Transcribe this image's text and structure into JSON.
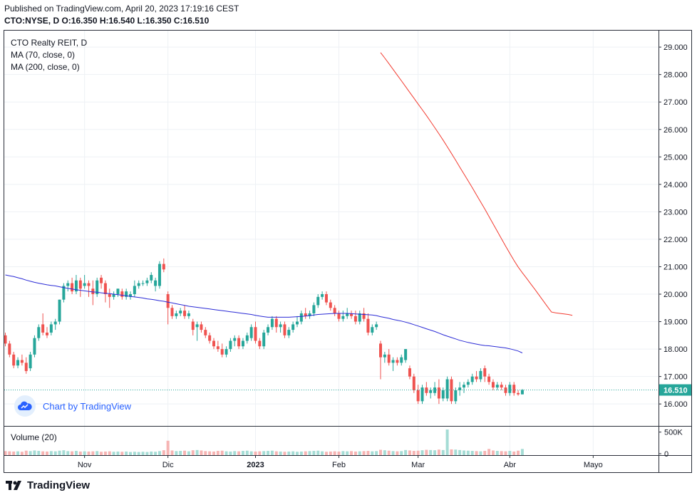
{
  "header": {
    "published": "Published on TradingView.com, April 20, 2023 17:19:16 CEST",
    "ohlc": "CTO:NYSE, D O:16.350 H:16.540 L:16.350 C:16.510"
  },
  "legend": {
    "title": "CTO Realty REIT, D",
    "ma70": "MA (70, close, 0)",
    "ma200": "MA (200, close, 0)"
  },
  "volume_legend": "Volume (20)",
  "watermark": "Chart by TradingView",
  "footer_logo": "TradingView",
  "colors": {
    "up": "#26a69a",
    "down": "#ef5350",
    "up_vol": "#a5dcd5",
    "down_vol": "#f6b4b3",
    "ma70": "#2b2bd6",
    "ma200": "#f23b30",
    "price_label": "#26a69a"
  },
  "chart_data": {
    "type": "candlestick",
    "symbol": "CTO:NYSE",
    "interval": "D",
    "last_price": 16.51,
    "last_price_label": "16.510",
    "y_ticks": [
      "29.000",
      "28.000",
      "27.000",
      "26.000",
      "25.000",
      "24.000",
      "23.000",
      "22.000",
      "21.000",
      "20.000",
      "19.000",
      "18.000",
      "17.000",
      "16.000"
    ],
    "ylim": [
      15.2,
      29.6
    ],
    "x_ticks": [
      {
        "label": "Nov",
        "bar": 19
      },
      {
        "label": "Dic",
        "bar": 39
      },
      {
        "label": "2023",
        "bar": 60
      },
      {
        "label": "Feb",
        "bar": 80
      },
      {
        "label": "Mar",
        "bar": 99
      },
      {
        "label": "Abr",
        "bar": 121
      },
      {
        "label": "Mayo",
        "bar": 141
      }
    ],
    "volume_ticks": [
      "500K",
      "0"
    ],
    "volume_max": 560000,
    "ohlc": [
      [
        18.5,
        18.6,
        18.1,
        18.2
      ],
      [
        18.2,
        18.3,
        17.7,
        17.8
      ],
      [
        17.8,
        17.9,
        17.3,
        17.4
      ],
      [
        17.4,
        17.7,
        17.3,
        17.6
      ],
      [
        17.6,
        17.8,
        17.4,
        17.5
      ],
      [
        17.5,
        17.7,
        17.1,
        17.2
      ],
      [
        17.3,
        17.9,
        17.2,
        17.8
      ],
      [
        17.8,
        18.5,
        17.7,
        18.4
      ],
      [
        18.4,
        18.9,
        18.3,
        18.8
      ],
      [
        18.9,
        19.3,
        18.5,
        18.6
      ],
      [
        18.6,
        18.8,
        18.4,
        18.5
      ],
      [
        18.6,
        19.0,
        18.5,
        18.9
      ],
      [
        18.9,
        19.1,
        18.7,
        19.0
      ],
      [
        19.0,
        19.8,
        18.9,
        19.8
      ],
      [
        19.8,
        20.4,
        19.7,
        20.3
      ],
      [
        20.3,
        20.5,
        20.1,
        20.4
      ],
      [
        20.4,
        20.6,
        20.0,
        20.1
      ],
      [
        20.1,
        20.7,
        20.0,
        20.5
      ],
      [
        20.5,
        20.6,
        19.9,
        20.2
      ],
      [
        20.3,
        20.7,
        20.2,
        20.4
      ],
      [
        20.4,
        20.5,
        19.9,
        20.3
      ],
      [
        20.2,
        20.5,
        19.6,
        20.0
      ],
      [
        20.0,
        20.6,
        19.9,
        20.5
      ],
      [
        20.6,
        20.7,
        20.2,
        20.4
      ],
      [
        20.4,
        20.5,
        19.7,
        20.0
      ],
      [
        20.0,
        20.2,
        19.5,
        19.9
      ],
      [
        19.9,
        20.1,
        19.8,
        20.0
      ],
      [
        20.0,
        20.2,
        19.9,
        20.2
      ],
      [
        20.1,
        20.2,
        19.8,
        19.9
      ],
      [
        19.9,
        20.2,
        19.8,
        20.1
      ],
      [
        19.9,
        20.1,
        19.8,
        20.0
      ],
      [
        20.0,
        20.5,
        19.9,
        20.3
      ],
      [
        20.3,
        20.5,
        20.2,
        20.4
      ],
      [
        20.4,
        20.5,
        20.3,
        20.4
      ],
      [
        20.4,
        20.6,
        20.3,
        20.5
      ],
      [
        20.5,
        20.8,
        20.4,
        20.7
      ],
      [
        20.3,
        20.6,
        20.1,
        20.5
      ],
      [
        20.3,
        21.2,
        20.2,
        21.1
      ],
      [
        21.1,
        21.3,
        20.8,
        20.9
      ],
      [
        20.0,
        20.1,
        18.9,
        19.5
      ],
      [
        19.5,
        19.6,
        19.1,
        19.2
      ],
      [
        19.2,
        19.4,
        19.1,
        19.3
      ],
      [
        19.3,
        19.5,
        19.2,
        19.4
      ],
      [
        19.4,
        19.6,
        19.1,
        19.2
      ],
      [
        19.2,
        19.4,
        19.1,
        19.3
      ],
      [
        19.0,
        19.1,
        18.5,
        18.7
      ],
      [
        18.8,
        19.0,
        18.3,
        18.9
      ],
      [
        18.9,
        19.0,
        18.6,
        18.7
      ],
      [
        18.7,
        18.8,
        18.4,
        18.5
      ],
      [
        18.5,
        18.6,
        18.2,
        18.3
      ],
      [
        18.3,
        18.4,
        18.0,
        18.1
      ],
      [
        18.1,
        18.3,
        17.9,
        18.0
      ],
      [
        18.0,
        18.2,
        17.7,
        17.8
      ],
      [
        17.8,
        18.1,
        17.7,
        18.0
      ],
      [
        18.0,
        18.4,
        17.9,
        18.3
      ],
      [
        18.3,
        18.5,
        18.1,
        18.4
      ],
      [
        18.4,
        18.5,
        18.0,
        18.1
      ],
      [
        18.1,
        18.4,
        18.0,
        18.3
      ],
      [
        18.3,
        18.6,
        18.2,
        18.5
      ],
      [
        18.4,
        18.9,
        18.3,
        18.8
      ],
      [
        18.8,
        19.0,
        18.2,
        18.3
      ],
      [
        18.3,
        18.4,
        18.0,
        18.1
      ],
      [
        18.1,
        18.7,
        18.0,
        18.6
      ],
      [
        18.6,
        18.9,
        18.5,
        18.8
      ],
      [
        18.8,
        19.2,
        18.7,
        19.1
      ],
      [
        19.1,
        19.2,
        18.6,
        18.8
      ],
      [
        18.8,
        19.0,
        18.6,
        18.9
      ],
      [
        18.9,
        19.0,
        18.4,
        18.5
      ],
      [
        18.5,
        18.8,
        18.4,
        18.7
      ],
      [
        18.7,
        19.0,
        18.6,
        18.9
      ],
      [
        18.9,
        19.2,
        18.8,
        19.0
      ],
      [
        19.0,
        19.4,
        18.9,
        19.3
      ],
      [
        19.3,
        19.5,
        19.1,
        19.2
      ],
      [
        19.2,
        19.4,
        19.1,
        19.3
      ],
      [
        19.3,
        19.7,
        19.2,
        19.6
      ],
      [
        19.6,
        20.0,
        19.5,
        19.9
      ],
      [
        19.9,
        20.1,
        19.8,
        20.0
      ],
      [
        20.0,
        20.1,
        19.6,
        19.7
      ],
      [
        19.7,
        19.8,
        19.4,
        19.5
      ],
      [
        19.5,
        19.6,
        19.2,
        19.3
      ],
      [
        19.3,
        19.4,
        19.0,
        19.1
      ],
      [
        19.1,
        19.4,
        19.0,
        19.2
      ],
      [
        19.2,
        19.5,
        19.1,
        19.3
      ],
      [
        19.3,
        19.4,
        19.1,
        19.2
      ],
      [
        19.2,
        19.4,
        18.9,
        19.0
      ],
      [
        19.0,
        19.4,
        18.9,
        19.3
      ],
      [
        19.3,
        19.5,
        19.0,
        19.1
      ],
      [
        19.1,
        19.3,
        18.5,
        18.6
      ],
      [
        18.6,
        18.9,
        18.5,
        18.8
      ],
      [
        18.8,
        19.0,
        18.7,
        18.9
      ],
      [
        18.2,
        18.3,
        16.9,
        17.7
      ],
      [
        17.7,
        17.9,
        17.5,
        17.8
      ],
      [
        17.8,
        18.0,
        17.4,
        17.5
      ],
      [
        17.5,
        17.7,
        17.2,
        17.6
      ],
      [
        17.6,
        17.7,
        17.4,
        17.5
      ],
      [
        17.5,
        17.8,
        17.4,
        17.7
      ],
      [
        17.6,
        18.0,
        17.5,
        18.0
      ],
      [
        17.3,
        17.4,
        16.9,
        17.0
      ],
      [
        17.0,
        17.1,
        16.4,
        16.5
      ],
      [
        16.5,
        16.7,
        16.0,
        16.1
      ],
      [
        16.1,
        16.7,
        16.0,
        16.6
      ],
      [
        16.6,
        16.8,
        16.3,
        16.4
      ],
      [
        16.4,
        16.6,
        16.2,
        16.5
      ],
      [
        16.4,
        16.8,
        16.3,
        16.6
      ],
      [
        16.6,
        16.9,
        16.0,
        16.2
      ],
      [
        16.2,
        16.6,
        16.1,
        16.5
      ],
      [
        16.2,
        17.0,
        16.1,
        16.9
      ],
      [
        16.9,
        17.0,
        16.0,
        16.1
      ],
      [
        16.1,
        16.6,
        16.0,
        16.5
      ],
      [
        16.5,
        16.8,
        16.3,
        16.6
      ],
      [
        16.6,
        16.8,
        16.4,
        16.7
      ],
      [
        16.7,
        16.9,
        16.6,
        16.8
      ],
      [
        16.8,
        17.1,
        16.7,
        17.0
      ],
      [
        17.0,
        17.2,
        16.8,
        16.9
      ],
      [
        16.9,
        17.3,
        16.8,
        17.2
      ],
      [
        17.3,
        17.4,
        16.8,
        17.0
      ],
      [
        17.0,
        17.1,
        16.7,
        16.8
      ],
      [
        16.8,
        16.9,
        16.5,
        16.6
      ],
      [
        16.6,
        16.8,
        16.5,
        16.7
      ],
      [
        16.7,
        16.8,
        16.5,
        16.6
      ],
      [
        16.6,
        16.7,
        16.3,
        16.4
      ],
      [
        16.4,
        16.8,
        16.3,
        16.7
      ],
      [
        16.7,
        16.8,
        16.3,
        16.4
      ],
      [
        16.4,
        16.5,
        16.3,
        16.35
      ],
      [
        16.35,
        16.54,
        16.35,
        16.51
      ]
    ],
    "volume": [
      60000,
      55000,
      50000,
      55000,
      45000,
      70000,
      60000,
      75000,
      65000,
      55000,
      50000,
      60000,
      55000,
      70000,
      80000,
      60000,
      55000,
      65000,
      50000,
      55000,
      50000,
      55000,
      60000,
      45000,
      50000,
      55000,
      45000,
      50000,
      45000,
      50000,
      40000,
      45000,
      40000,
      45000,
      40000,
      50000,
      45000,
      60000,
      80000,
      300000,
      75000,
      60000,
      65000,
      70000,
      55000,
      80000,
      85000,
      75000,
      60000,
      55000,
      50000,
      65000,
      70000,
      55000,
      50000,
      60000,
      55000,
      65000,
      70000,
      55000,
      50000,
      55000,
      60000,
      65000,
      70000,
      55000,
      50000,
      45000,
      50000,
      55000,
      45000,
      50000,
      55000,
      60000,
      65000,
      70000,
      55000,
      45000,
      50000,
      55000,
      50000,
      60000,
      55000,
      60000,
      50000,
      55000,
      60000,
      65000,
      55000,
      60000,
      90000,
      80000,
      70000,
      60000,
      55000,
      60000,
      85000,
      75000,
      65000,
      70000,
      80000,
      90000,
      85000,
      80000,
      95000,
      85000,
      560000,
      100000,
      95000,
      85000,
      75000,
      70000,
      65000,
      60000,
      55000,
      65000,
      110000,
      75000,
      65000,
      60000,
      55000,
      65000,
      50000,
      70000,
      110000
    ],
    "ma70_start": 0,
    "ma70": [
      20.7,
      20.67,
      20.64,
      20.6,
      20.56,
      20.51,
      20.47,
      20.43,
      20.4,
      20.37,
      20.34,
      20.32,
      20.3,
      20.27,
      20.24,
      20.21,
      20.19,
      20.16,
      20.14,
      20.12,
      20.1,
      20.08,
      20.07,
      20.05,
      20.03,
      20.02,
      20.0,
      19.98,
      19.96,
      19.94,
      19.92,
      19.9,
      19.88,
      19.86,
      19.83,
      19.81,
      19.79,
      19.76,
      19.74,
      19.71,
      19.68,
      19.65,
      19.62,
      19.59,
      19.56,
      19.54,
      19.52,
      19.5,
      19.48,
      19.46,
      19.44,
      19.42,
      19.4,
      19.38,
      19.36,
      19.34,
      19.32,
      19.3,
      19.28,
      19.26,
      19.23,
      19.2,
      19.18,
      19.16,
      19.16,
      19.16,
      19.16,
      19.16,
      19.16,
      19.17,
      19.18,
      19.19,
      19.2,
      19.22,
      19.24,
      19.26,
      19.27,
      19.28,
      19.29,
      19.3,
      19.3,
      19.3,
      19.3,
      19.29,
      19.28,
      19.27,
      19.26,
      19.25,
      19.24,
      19.22,
      19.18,
      19.15,
      19.12,
      19.08,
      19.05,
      19.02,
      18.98,
      18.94,
      18.89,
      18.84,
      18.79,
      18.74,
      18.69,
      18.64,
      18.58,
      18.52,
      18.47,
      18.42,
      18.37,
      18.32,
      18.28,
      18.24,
      18.21,
      18.18,
      18.15,
      18.13,
      18.12,
      18.1,
      18.08,
      18.06,
      18.04,
      18.01,
      17.97,
      17.93,
      17.86
    ],
    "ma200_start": 90,
    "ma200": [
      28.8,
      28.6,
      28.4,
      28.19,
      27.98,
      27.77,
      27.56,
      27.35,
      27.14,
      26.93,
      26.72,
      26.51,
      26.29,
      26.07,
      25.84,
      25.61,
      25.37,
      25.13,
      24.88,
      24.63,
      24.38,
      24.13,
      23.88,
      23.62,
      23.36,
      23.1,
      22.83,
      22.56,
      22.29,
      22.02,
      21.75,
      21.49,
      21.23,
      20.99,
      20.78,
      20.58,
      20.38,
      20.18,
      19.97,
      19.76,
      19.55,
      19.35,
      19.32,
      19.3,
      19.28,
      19.26,
      19.23
    ]
  }
}
